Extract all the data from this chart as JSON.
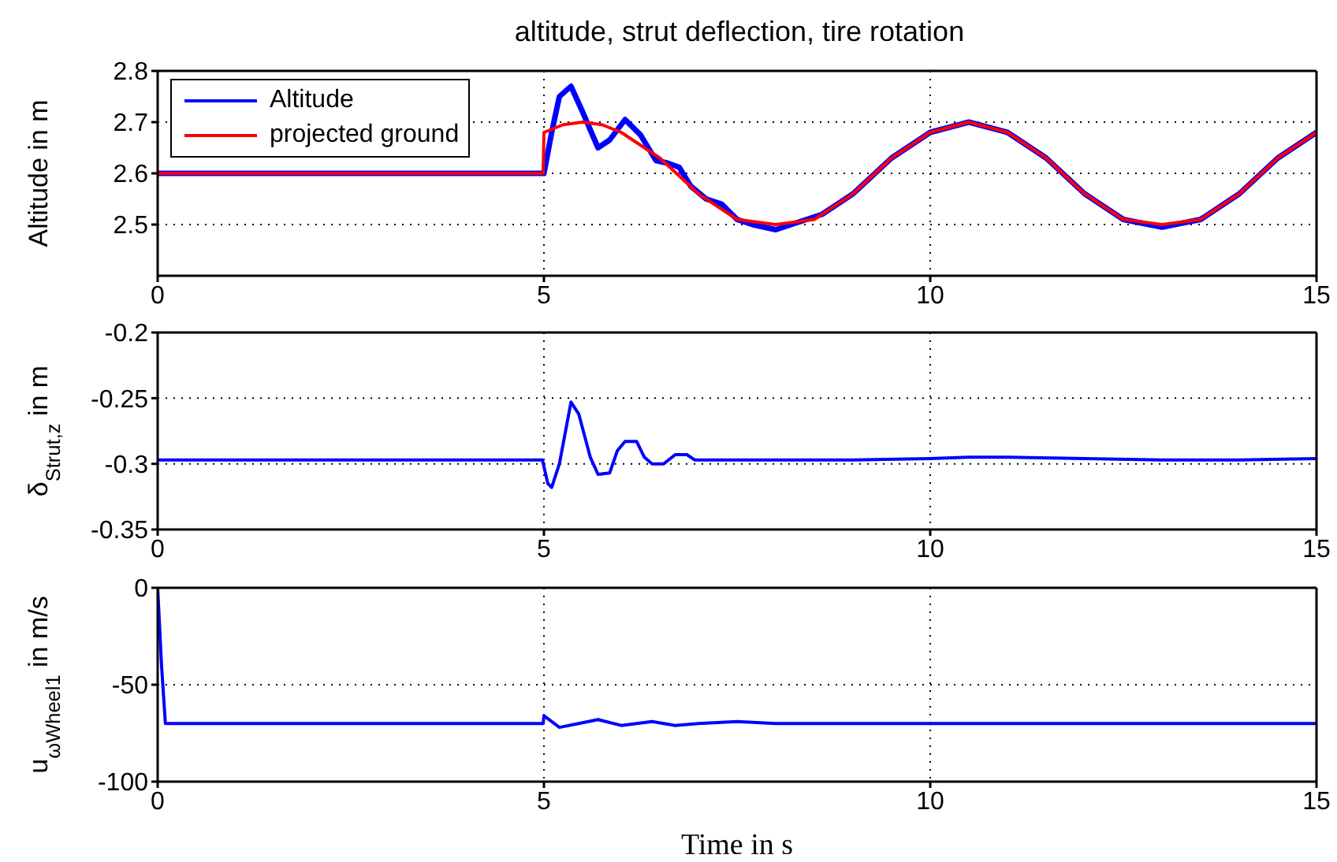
{
  "chart_data": [
    {
      "type": "line",
      "title": "altitude, strut deflection, tire rotation",
      "ylabel": "Altitude in m",
      "xlim": [
        0,
        15
      ],
      "xticks": [
        0,
        5,
        10,
        15
      ],
      "ylim": [
        2.4,
        2.8
      ],
      "yticks": [
        2.5,
        2.6,
        2.7,
        2.8
      ],
      "grid": true,
      "legend": "top left",
      "line_style": "solid",
      "marker": "none",
      "series": [
        {
          "name": "Altitude",
          "color": "#0000ff",
          "x": [
            0,
            4.99,
            5.0,
            5.1,
            5.2,
            5.35,
            5.5,
            5.7,
            5.85,
            6.05,
            6.25,
            6.45,
            6.6,
            6.75,
            6.9,
            7.1,
            7.3,
            7.5,
            7.7,
            8.0,
            8.3,
            8.6,
            9,
            9.5,
            10,
            10.5,
            11,
            11.5,
            12,
            12.5,
            13,
            13.5,
            14,
            14.5,
            15
          ],
          "values": [
            2.6,
            2.6,
            2.6,
            2.68,
            2.75,
            2.77,
            2.72,
            2.65,
            2.665,
            2.705,
            2.675,
            2.625,
            2.62,
            2.612,
            2.575,
            2.55,
            2.54,
            2.51,
            2.5,
            2.49,
            2.505,
            2.52,
            2.56,
            2.63,
            2.68,
            2.7,
            2.68,
            2.63,
            2.56,
            2.51,
            2.495,
            2.51,
            2.56,
            2.63,
            2.68
          ]
        },
        {
          "name": "projected ground",
          "color": "#ff0000",
          "x": [
            0,
            4.99,
            5.0,
            5.25,
            5.5,
            5.75,
            6,
            6.5,
            7,
            7.5,
            8,
            8.5,
            9,
            9.5,
            10,
            10.5,
            11,
            11.5,
            12,
            12.5,
            13,
            13.5,
            14,
            14.5,
            15
          ],
          "values": [
            2.6,
            2.6,
            2.68,
            2.695,
            2.7,
            2.695,
            2.68,
            2.63,
            2.56,
            2.51,
            2.5,
            2.51,
            2.56,
            2.63,
            2.68,
            2.7,
            2.68,
            2.63,
            2.56,
            2.51,
            2.5,
            2.51,
            2.56,
            2.63,
            2.68
          ]
        }
      ]
    },
    {
      "type": "line",
      "ylabel": "δ$_{Strut,z}$ in m",
      "xlim": [
        0,
        15
      ],
      "xticks": [
        0,
        5,
        10,
        15
      ],
      "ylim": [
        -0.35,
        -0.2
      ],
      "yticks": [
        -0.35,
        -0.3,
        -0.25,
        -0.2
      ],
      "grid": true,
      "line_style": "solid",
      "marker": "none",
      "series": [
        {
          "color": "#0000ff",
          "x": [
            0,
            4.98,
            5.05,
            5.1,
            5.2,
            5.35,
            5.45,
            5.6,
            5.7,
            5.85,
            5.95,
            6.05,
            6.2,
            6.3,
            6.4,
            6.55,
            6.7,
            6.85,
            6.95,
            7.2,
            8,
            9,
            10,
            10.5,
            11,
            12,
            13,
            14,
            15
          ],
          "values": [
            -0.297,
            -0.297,
            -0.315,
            -0.318,
            -0.3,
            -0.253,
            -0.262,
            -0.295,
            -0.308,
            -0.307,
            -0.29,
            -0.283,
            -0.283,
            -0.295,
            -0.3,
            -0.3,
            -0.293,
            -0.293,
            -0.297,
            -0.297,
            -0.297,
            -0.297,
            -0.296,
            -0.295,
            -0.295,
            -0.296,
            -0.297,
            -0.297,
            -0.296
          ]
        }
      ]
    },
    {
      "type": "line",
      "ylabel": "u$_{ωWheel1}$ in m/s",
      "xlabel": "Time in s",
      "xlim": [
        0,
        15
      ],
      "xticks": [
        0,
        5,
        10,
        15
      ],
      "ylim": [
        -100,
        0
      ],
      "yticks": [
        -100,
        -50,
        0
      ],
      "grid": true,
      "line_style": "solid",
      "marker": "none",
      "series": [
        {
          "color": "#0000ff",
          "x": [
            0,
            0.05,
            0.1,
            4.99,
            5.0,
            5.2,
            5.45,
            5.7,
            6.0,
            6.4,
            6.7,
            7.0,
            7.5,
            8,
            9,
            15
          ],
          "values": [
            0,
            -40,
            -70,
            -70,
            -66,
            -72,
            -70,
            -68,
            -71,
            -69,
            -71,
            -70,
            -69,
            -70,
            -70,
            -70
          ]
        }
      ]
    }
  ]
}
